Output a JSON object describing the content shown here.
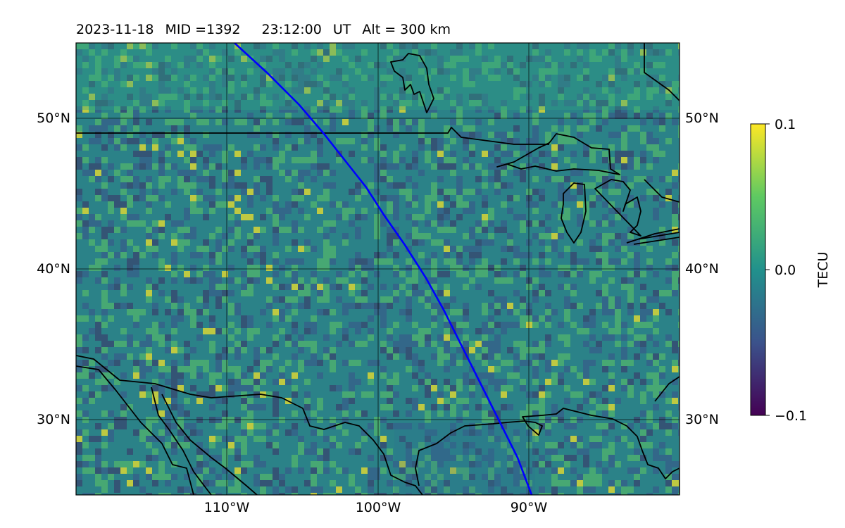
{
  "title": {
    "date": "2023-11-18",
    "mid": "MID =1392",
    "time": "23:12:00",
    "time_unit": "UT",
    "altitude": "Alt = 300 km"
  },
  "map": {
    "lat_labels": [
      "50°N",
      "40°N",
      "30°N"
    ],
    "lon_labels": [
      "110°W",
      "100°W",
      "90°W"
    ],
    "lon_range_deg": [
      -120,
      -80
    ],
    "lat_range_deg": [
      25,
      55
    ],
    "gridlines": true,
    "track_color": "#0000ff",
    "coast_color": "#000000"
  },
  "colorbar": {
    "label": "TECU",
    "ticks": [
      "0.1",
      "0.0",
      "−0.1"
    ],
    "range": [
      -0.1,
      0.1
    ],
    "colormap": "viridis",
    "colors": [
      "#440154",
      "#3b528b",
      "#21918c",
      "#5ec962",
      "#fde725"
    ]
  }
}
